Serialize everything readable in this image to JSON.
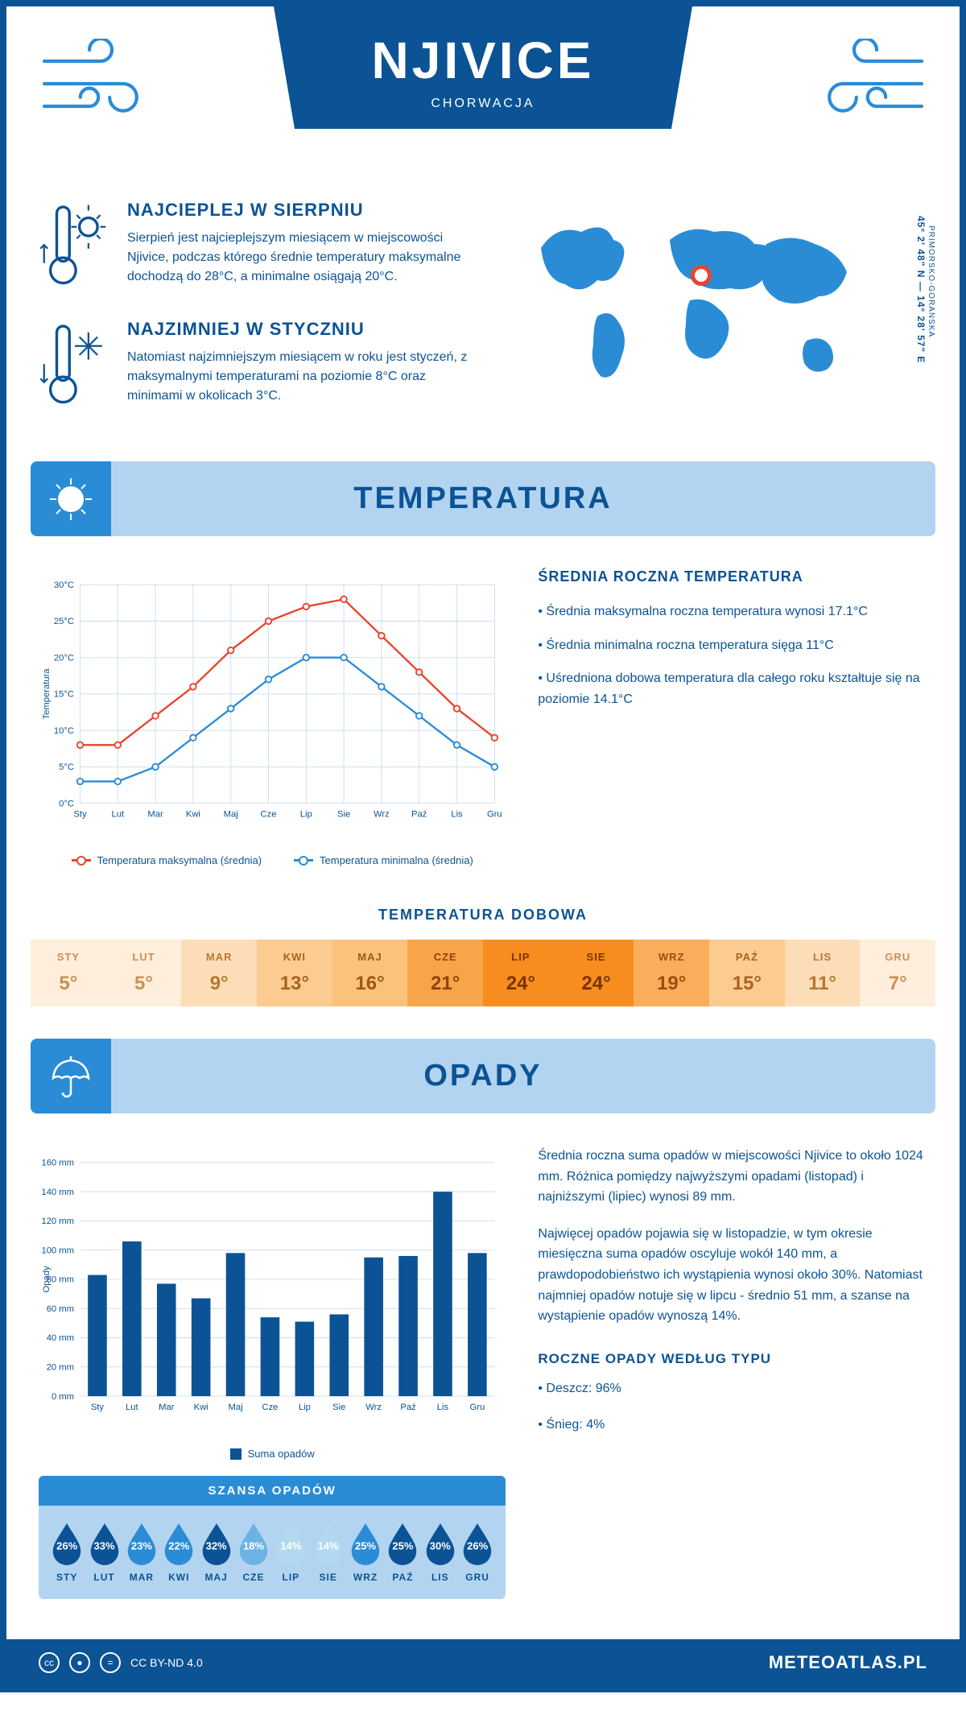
{
  "header": {
    "title": "NJIVICE",
    "subtitle": "CHORWACJA"
  },
  "intro": {
    "warmest": {
      "title": "NAJCIEPLEJ W SIERPNIU",
      "text": "Sierpień jest najcieplejszym miesiącem w miejscowości Njivice, podczas którego średnie temperatury maksymalne dochodzą do 28°C, a minimalne osiągają 20°C."
    },
    "coldest": {
      "title": "NAJZIMNIEJ W STYCZNIU",
      "text": "Natomiast najzimniejszym miesiącem w roku jest styczeń, z maksymalnymi temperaturami na poziomie 8°C oraz minimami w okolicach 3°C."
    },
    "coords_line1": "45° 2' 48\" N — 14° 28' 57\" E",
    "coords_line2": "PRIMORSKO-GORANSKA",
    "marker": {
      "left_pct": 52,
      "top_pct": 36
    }
  },
  "temperature": {
    "section_title": "TEMPERATURA",
    "chart": {
      "type": "line",
      "months": [
        "Sty",
        "Lut",
        "Mar",
        "Kwi",
        "Maj",
        "Cze",
        "Lip",
        "Sie",
        "Wrz",
        "Paź",
        "Lis",
        "Gru"
      ],
      "series": [
        {
          "name": "Temperatura maksymalna (średnia)",
          "color": "#e8442e",
          "values": [
            8,
            8,
            12,
            16,
            21,
            25,
            27,
            28,
            23,
            18,
            13,
            9
          ]
        },
        {
          "name": "Temperatura minimalna (średnia)",
          "color": "#2b8cd6",
          "values": [
            3,
            3,
            5,
            9,
            13,
            17,
            20,
            20,
            16,
            12,
            8,
            5
          ]
        }
      ],
      "ylabel": "Temperatura",
      "ymin": 0,
      "ymax": 30,
      "ystep": 5,
      "grid_color": "#ccddee",
      "background": "#ffffff",
      "marker_radius": 4,
      "line_width": 2.5
    },
    "info": {
      "title": "ŚREDNIA ROCZNA TEMPERATURA",
      "bullets": [
        "Średnia maksymalna roczna temperatura wynosi 17.1°C",
        "Średnia minimalna roczna temperatura sięga 11°C",
        "Uśredniona dobowa temperatura dla całego roku kształtuje się na poziomie 14.1°C"
      ]
    },
    "daily": {
      "title": "TEMPERATURA DOBOWA",
      "months": [
        "STY",
        "LUT",
        "MAR",
        "KWI",
        "MAJ",
        "CZE",
        "LIP",
        "SIE",
        "WRZ",
        "PAŹ",
        "LIS",
        "GRU"
      ],
      "values": [
        "5°",
        "5°",
        "9°",
        "13°",
        "16°",
        "21°",
        "24°",
        "24°",
        "19°",
        "15°",
        "11°",
        "7°"
      ],
      "bg_colors": [
        "#feeedb",
        "#feeedb",
        "#fdddb7",
        "#fccb8f",
        "#fbc27c",
        "#f8a54a",
        "#f68d1e",
        "#f68d1e",
        "#faae5b",
        "#fccb8f",
        "#fdddb7",
        "#feeedb"
      ],
      "text_colors": [
        "#c89156",
        "#c89156",
        "#b87732",
        "#a86420",
        "#a05816",
        "#8f4408",
        "#7a3300",
        "#7a3300",
        "#985010",
        "#a86420",
        "#b87732",
        "#c89156"
      ]
    }
  },
  "precipitation": {
    "section_title": "OPADY",
    "chart": {
      "type": "bar",
      "months": [
        "Sty",
        "Lut",
        "Mar",
        "Kwi",
        "Maj",
        "Cze",
        "Lip",
        "Sie",
        "Wrz",
        "Paź",
        "Lis",
        "Gru"
      ],
      "values": [
        83,
        106,
        77,
        67,
        98,
        54,
        51,
        56,
        95,
        96,
        140,
        98
      ],
      "bar_color": "#0b5394",
      "ylabel": "Opady",
      "legend": "Suma opadów",
      "ymin": 0,
      "ymax": 160,
      "ystep": 20,
      "grid_color": "#ccddee",
      "bar_width_ratio": 0.55
    },
    "info": {
      "p1": "Średnia roczna suma opadów w miejscowości Njivice to około 1024 mm. Różnica pomiędzy najwyższymi opadami (listopad) i najniższymi (lipiec) wynosi 89 mm.",
      "p2": "Najwięcej opadów pojawia się w listopadzie, w tym okresie miesięczna suma opadów oscyluje wokół 140 mm, a prawdopodobieństwo ich wystąpienia wynosi około 30%. Natomiast najmniej opadów notuje się w lipcu - średnio 51 mm, a szanse na wystąpienie opadów wynoszą 14%.",
      "type_title": "ROCZNE OPADY WEDŁUG TYPU",
      "types": [
        "Deszcz: 96%",
        "Śnieg: 4%"
      ]
    },
    "chance": {
      "title": "SZANSA OPADÓW",
      "months": [
        "STY",
        "LUT",
        "MAR",
        "KWI",
        "MAJ",
        "CZE",
        "LIP",
        "SIE",
        "WRZ",
        "PAŹ",
        "LIS",
        "GRU"
      ],
      "values": [
        "26%",
        "33%",
        "23%",
        "22%",
        "32%",
        "18%",
        "14%",
        "14%",
        "25%",
        "25%",
        "30%",
        "26%"
      ],
      "drop_colors": [
        "#0b5394",
        "#0b5394",
        "#2b8cd6",
        "#2b8cd6",
        "#0b5394",
        "#6cb3e4",
        "#b3d9f0",
        "#b3d9f0",
        "#2b8cd6",
        "#0b5394",
        "#0b5394",
        "#0b5394"
      ]
    }
  },
  "footer": {
    "license": "CC BY-ND 4.0",
    "brand": "METEOATLAS.PL"
  }
}
